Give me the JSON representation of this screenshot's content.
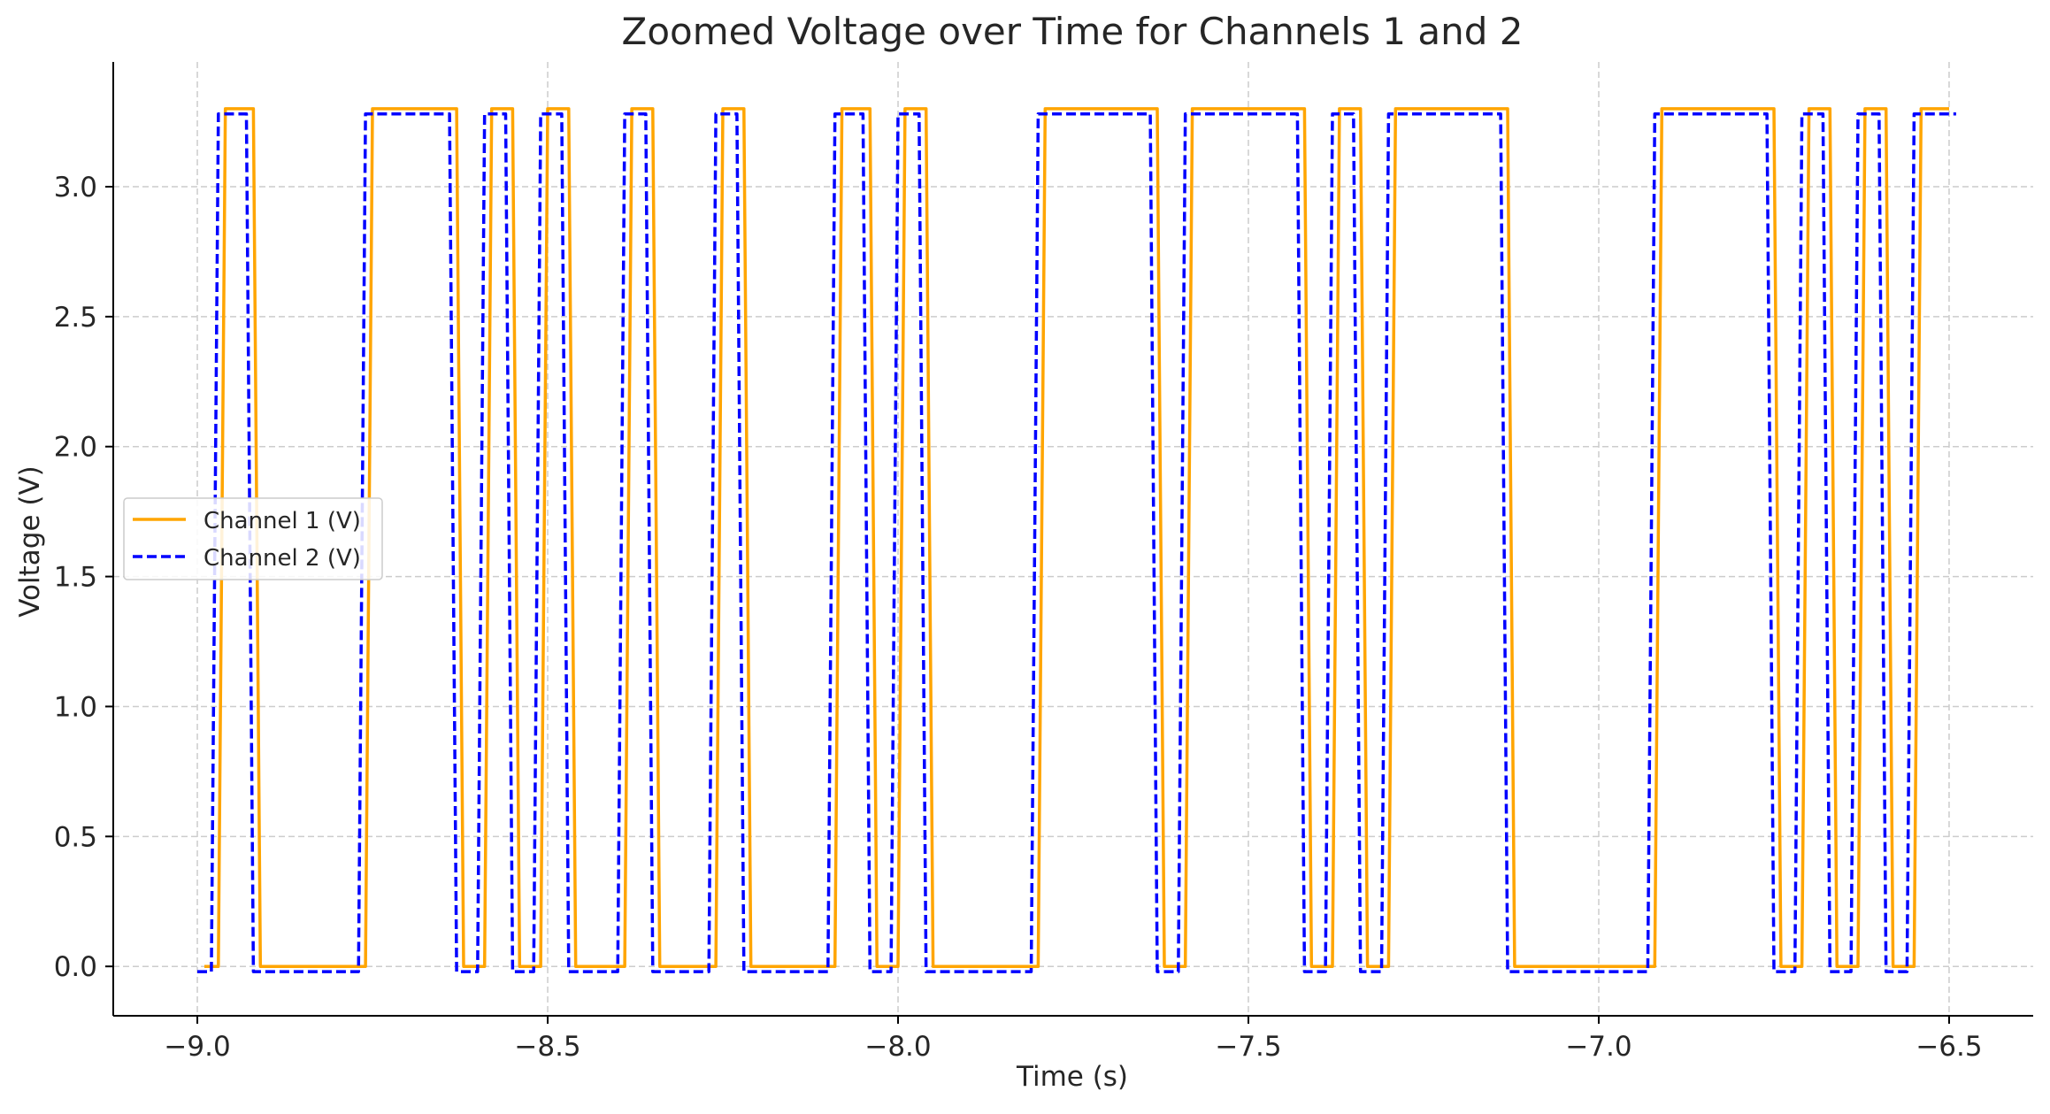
{
  "chart_data": {
    "type": "line",
    "title": "Zoomed Voltage over Time for Channels 1 and 2",
    "xlabel": "Time (s)",
    "ylabel": "Voltage (V)",
    "xlim": [
      -9.12,
      -6.38
    ],
    "ylim": [
      -0.19,
      3.48
    ],
    "xticks": [
      -9.0,
      -8.5,
      -8.0,
      -7.5,
      -7.0,
      -6.5
    ],
    "xtick_labels": [
      "−9.0",
      "−8.5",
      "−8.0",
      "−7.5",
      "−7.0",
      "−6.5"
    ],
    "yticks": [
      0.0,
      0.5,
      1.0,
      1.5,
      2.0,
      2.5,
      3.0
    ],
    "ytick_labels": [
      "0.0",
      "0.5",
      "1.0",
      "1.5",
      "2.0",
      "2.5",
      "3.0"
    ],
    "grid": true,
    "legend_position": "center-left",
    "series": [
      {
        "name": "Channel 1 (V)",
        "color": "#FFA500",
        "style": "solid",
        "x": [
          -8.99,
          -8.97,
          -8.96,
          -8.92,
          -8.91,
          -8.76,
          -8.75,
          -8.63,
          -8.62,
          -8.59,
          -8.58,
          -8.55,
          -8.54,
          -8.51,
          -8.5,
          -8.47,
          -8.46,
          -8.39,
          -8.38,
          -8.35,
          -8.34,
          -8.26,
          -8.25,
          -8.22,
          -8.21,
          -8.09,
          -8.08,
          -8.04,
          -8.03,
          -8.0,
          -7.99,
          -7.96,
          -7.95,
          -7.8,
          -7.79,
          -7.63,
          -7.62,
          -7.59,
          -7.58,
          -7.42,
          -7.41,
          -7.38,
          -7.37,
          -7.34,
          -7.33,
          -7.3,
          -7.29,
          -7.13,
          -7.12,
          -6.92,
          -6.91,
          -6.75,
          -6.74,
          -6.71,
          -6.7,
          -6.67,
          -6.66,
          -6.63,
          -6.62,
          -6.59,
          -6.58,
          -6.55,
          -6.54,
          -6.5
        ],
        "y": [
          0.0,
          0.0,
          3.3,
          3.3,
          0.0,
          0.0,
          3.3,
          3.3,
          0.0,
          0.0,
          3.3,
          3.3,
          0.0,
          0.0,
          3.3,
          3.3,
          0.0,
          0.0,
          3.3,
          3.3,
          0.0,
          0.0,
          3.3,
          3.3,
          0.0,
          0.0,
          3.3,
          3.3,
          0.0,
          0.0,
          3.3,
          3.3,
          0.0,
          0.0,
          3.3,
          3.3,
          0.0,
          0.0,
          3.3,
          3.3,
          0.0,
          0.0,
          3.3,
          3.3,
          0.0,
          0.0,
          3.3,
          3.3,
          0.0,
          0.0,
          3.3,
          3.3,
          0.0,
          0.0,
          3.3,
          3.3,
          0.0,
          0.0,
          3.3,
          3.3,
          0.0,
          0.0,
          3.3,
          3.3
        ]
      },
      {
        "name": "Channel 2 (V)",
        "color": "#0000FF",
        "style": "dashed",
        "x": [
          -9.0,
          -8.98,
          -8.97,
          -8.93,
          -8.92,
          -8.77,
          -8.76,
          -8.64,
          -8.63,
          -8.6,
          -8.59,
          -8.56,
          -8.55,
          -8.52,
          -8.51,
          -8.48,
          -8.47,
          -8.4,
          -8.39,
          -8.36,
          -8.35,
          -8.27,
          -8.26,
          -8.23,
          -8.22,
          -8.1,
          -8.09,
          -8.05,
          -8.04,
          -8.01,
          -8.0,
          -7.97,
          -7.96,
          -7.81,
          -7.8,
          -7.64,
          -7.63,
          -7.6,
          -7.59,
          -7.43,
          -7.42,
          -7.39,
          -7.38,
          -7.35,
          -7.34,
          -7.31,
          -7.3,
          -7.14,
          -7.13,
          -6.93,
          -6.92,
          -6.76,
          -6.75,
          -6.72,
          -6.71,
          -6.68,
          -6.67,
          -6.64,
          -6.63,
          -6.6,
          -6.59,
          -6.56,
          -6.55,
          -6.49
        ],
        "y": [
          -0.02,
          -0.02,
          3.28,
          3.28,
          -0.02,
          -0.02,
          3.28,
          3.28,
          -0.02,
          -0.02,
          3.28,
          3.28,
          -0.02,
          -0.02,
          3.28,
          3.28,
          -0.02,
          -0.02,
          3.28,
          3.28,
          -0.02,
          -0.02,
          3.28,
          3.28,
          -0.02,
          -0.02,
          3.28,
          3.28,
          -0.02,
          -0.02,
          3.28,
          3.28,
          -0.02,
          -0.02,
          3.28,
          3.28,
          -0.02,
          -0.02,
          3.28,
          3.28,
          -0.02,
          -0.02,
          3.28,
          3.28,
          -0.02,
          -0.02,
          3.28,
          3.28,
          -0.02,
          -0.02,
          3.28,
          3.28,
          -0.02,
          -0.02,
          3.28,
          3.28,
          -0.02,
          -0.02,
          3.28,
          3.28,
          -0.02,
          -0.02,
          3.28,
          3.28
        ]
      }
    ]
  },
  "colors": {
    "grid": "#cccccc",
    "axis": "#000000",
    "text": "#262626"
  }
}
